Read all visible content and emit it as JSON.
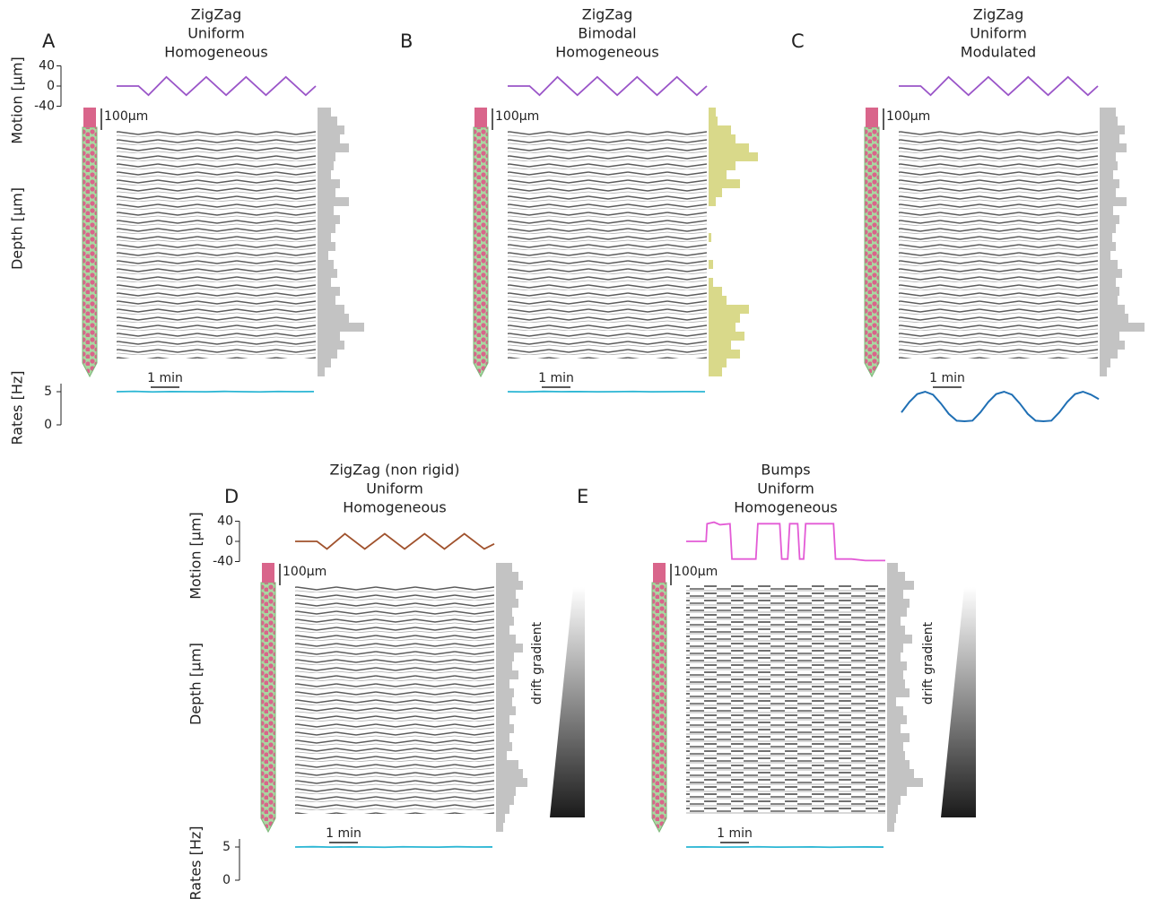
{
  "chart_data": [
    {
      "type": "line",
      "panel": "A",
      "title": [
        "ZigZag",
        "Uniform",
        "Homogeneous"
      ],
      "ylabel": "Motion [µm]",
      "depth_label": "Depth [µm]",
      "rates_label": "Rates [Hz]",
      "depth_scale": "100µm",
      "time_scale": "1 min",
      "x": [
        0,
        1.1,
        1.6,
        2.5,
        3.5,
        4.5,
        5.5,
        6.5,
        7.5,
        8.5,
        9.5,
        10
      ],
      "values": [
        0,
        0,
        -18,
        18,
        -18,
        18,
        -18,
        18,
        -18,
        18,
        -18,
        0
      ],
      "color": "#9a55c8",
      "ylim": [
        -40,
        40
      ],
      "yticks": [
        40,
        0,
        -40
      ],
      "histogram": {
        "values": [
          15,
          22,
          30,
          25,
          35,
          20,
          18,
          15,
          25,
          20,
          35,
          18,
          25,
          20,
          15,
          20,
          12,
          18,
          22,
          15,
          25,
          20,
          30,
          35,
          52,
          25,
          30,
          22,
          15,
          8
        ],
        "color": "#c3c3c3",
        "xlim": [
          0,
          60
        ]
      },
      "rates": {
        "values": [
          5,
          5.05,
          4.97,
          5.02,
          5,
          4.98,
          5.04,
          5,
          4.97,
          5.03,
          5,
          5.02
        ],
        "color": "#2bb6d4",
        "ylim": [
          0,
          6
        ],
        "yticks": [
          5,
          0
        ]
      }
    },
    {
      "type": "line",
      "panel": "B",
      "title": [
        "ZigZag",
        "Bimodal",
        "Homogeneous"
      ],
      "depth_scale": "100µm",
      "time_scale": "1 min",
      "x": [
        0,
        1.1,
        1.6,
        2.5,
        3.5,
        4.5,
        5.5,
        6.5,
        7.5,
        8.5,
        9.5,
        10
      ],
      "values": [
        0,
        0,
        -18,
        18,
        -18,
        18,
        -18,
        18,
        -18,
        18,
        -18,
        0
      ],
      "color": "#9a55c8",
      "ylim": [
        -40,
        40
      ],
      "histogram": {
        "values": [
          8,
          10,
          25,
          30,
          45,
          55,
          30,
          20,
          35,
          15,
          8,
          0,
          0,
          0,
          3,
          0,
          0,
          5,
          0,
          5,
          15,
          20,
          45,
          35,
          30,
          40,
          25,
          35,
          20,
          15
        ],
        "color": "#d9d98a",
        "xlim": [
          0,
          60
        ]
      },
      "rates": {
        "values": [
          5,
          4.97,
          5.04,
          5,
          5.02,
          4.98,
          5,
          5.03,
          4.98,
          5,
          5.02,
          5
        ],
        "color": "#2bb6d4",
        "ylim": [
          0,
          6
        ]
      }
    },
    {
      "type": "line",
      "panel": "C",
      "title": [
        "ZigZag",
        "Uniform",
        "Modulated"
      ],
      "depth_scale": "100µm",
      "time_scale": "1 min",
      "x": [
        0,
        1.1,
        1.6,
        2.5,
        3.5,
        4.5,
        5.5,
        6.5,
        7.5,
        8.5,
        9.5,
        10
      ],
      "values": [
        0,
        0,
        -18,
        18,
        -18,
        18,
        -18,
        18,
        -18,
        18,
        -18,
        0
      ],
      "color": "#9a55c8",
      "ylim": [
        -40,
        40
      ],
      "histogram": {
        "values": [
          18,
          20,
          28,
          22,
          30,
          18,
          20,
          15,
          22,
          18,
          30,
          15,
          22,
          18,
          14,
          18,
          12,
          20,
          25,
          18,
          22,
          20,
          28,
          32,
          50,
          22,
          28,
          20,
          12,
          8
        ],
        "color": "#c3c3c3",
        "xlim": [
          0,
          60
        ]
      },
      "modulation": {
        "values": [
          0.3,
          0.65,
          0.92,
          1,
          0.9,
          0.6,
          0.25,
          0.02,
          0,
          0.02,
          0.3,
          0.65,
          0.92,
          1,
          0.9,
          0.6,
          0.25,
          0.02,
          0,
          0.02,
          0.3,
          0.65,
          0.92,
          1,
          0.9,
          0.75
        ],
        "color": "#1f6fb4",
        "ylim": [
          0,
          1
        ]
      }
    },
    {
      "type": "line",
      "panel": "D",
      "title": [
        "ZigZag (non rigid)",
        "Uniform",
        "Homogeneous"
      ],
      "ylabel": "Motion [µm]",
      "depth_label": "Depth [µm]",
      "rates_label": "Rates [Hz]",
      "depth_scale": "100µm",
      "time_scale": "1 min",
      "gradient_label": "drift gradient",
      "x": [
        0,
        1.1,
        1.6,
        2.5,
        3.5,
        4.5,
        5.5,
        6.5,
        7.5,
        8.5,
        9.5,
        10
      ],
      "values": [
        0,
        0,
        -15,
        15,
        -15,
        15,
        -15,
        15,
        -15,
        15,
        -15,
        -5
      ],
      "color": "#a0522d",
      "ylim": [
        -40,
        40
      ],
      "yticks": [
        40,
        0,
        -40
      ],
      "histogram": {
        "values": [
          18,
          25,
          30,
          22,
          25,
          18,
          20,
          15,
          22,
          30,
          20,
          18,
          25,
          15,
          20,
          18,
          22,
          15,
          20,
          15,
          18,
          12,
          25,
          30,
          35,
          22,
          20,
          15,
          10,
          8
        ],
        "color": "#c3c3c3",
        "xlim": [
          0,
          60
        ]
      },
      "rates": {
        "values": [
          5,
          5.04,
          4.98,
          5.02,
          5,
          4.97,
          5.03,
          5,
          4.98,
          5.04,
          5,
          5.01
        ],
        "color": "#2bb6d4",
        "ylim": [
          0,
          6
        ],
        "yticks": [
          5,
          0
        ]
      }
    },
    {
      "type": "line",
      "panel": "E",
      "title": [
        "Bumps",
        "Uniform",
        "Homogeneous"
      ],
      "depth_scale": "100µm",
      "time_scale": "1 min",
      "gradient_label": "drift gradient",
      "x": [
        0,
        1,
        1.05,
        1.4,
        1.7,
        2.2,
        2.3,
        3.5,
        3.6,
        4.7,
        4.8,
        5.1,
        5.2,
        5.6,
        5.7,
        5.9,
        6,
        7.4,
        7.5,
        8.3,
        9,
        10
      ],
      "values": [
        0,
        0,
        35,
        38,
        33,
        35,
        -35,
        -35,
        35,
        35,
        -35,
        -35,
        35,
        35,
        -35,
        -35,
        35,
        35,
        -35,
        -35,
        -38,
        -38
      ],
      "color": "#e35bd6",
      "ylim": [
        -40,
        40
      ],
      "histogram": {
        "values": [
          12,
          20,
          30,
          18,
          25,
          22,
          15,
          20,
          28,
          18,
          15,
          22,
          18,
          20,
          25,
          10,
          18,
          22,
          15,
          25,
          18,
          20,
          25,
          30,
          40,
          22,
          15,
          12,
          10,
          8
        ],
        "color": "#c3c3c3",
        "xlim": [
          0,
          60
        ]
      },
      "rates": {
        "values": [
          5,
          5.02,
          4.98,
          5,
          5.03,
          4.98,
          5,
          5.02,
          4.97,
          5,
          5.01,
          4.99
        ],
        "color": "#2bb6d4",
        "ylim": [
          0,
          6
        ]
      }
    }
  ]
}
